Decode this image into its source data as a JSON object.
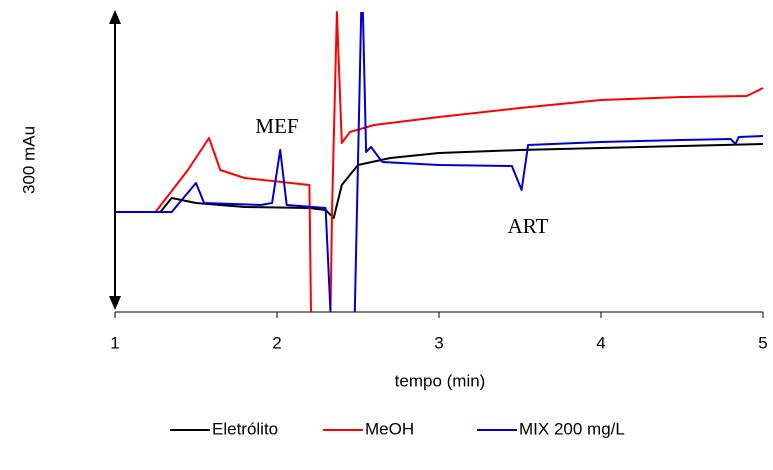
{
  "chart_data": {
    "type": "line",
    "y_label": "300 mAu",
    "x_label": "tempo (min)",
    "xlim": [
      1,
      5
    ],
    "xticks": [
      1,
      2,
      3,
      4,
      5
    ],
    "ylim": [
      0,
      300
    ],
    "annotations": [
      "MEF",
      "ART"
    ],
    "series": [
      {
        "name": "Eletrólito",
        "color": "#000000",
        "x": [
          1,
          1.28,
          1.35,
          1.5,
          1.8,
          2.2,
          2.3,
          2.35,
          2.4,
          2.5,
          2.7,
          3.0,
          3.5,
          4.0,
          4.5,
          5
        ],
        "values": [
          100,
          100,
          114,
          109,
          105,
          104,
          102,
          94,
          127,
          147,
          154,
          159,
          162,
          164,
          166,
          168
        ]
      },
      {
        "name": "MeOH",
        "color": "#ff0000",
        "x": [
          1,
          1.25,
          1.45,
          1.58,
          1.65,
          1.8,
          2.2,
          2.21,
          2.27,
          2.33,
          2.34,
          2.37,
          2.4,
          2.45,
          2.6,
          3.0,
          3.5,
          4.0,
          4.5,
          4.9,
          5
        ],
        "values": [
          100,
          100,
          142,
          174,
          142,
          134,
          127,
          0,
          null,
          0,
          105,
          300,
          169,
          180,
          187,
          195,
          204,
          212,
          215,
          216,
          224
        ]
      },
      {
        "name": "MIX 200 mg/L",
        "color": "#0000cc",
        "x": [
          1,
          1.35,
          1.5,
          1.55,
          1.9,
          1.97,
          2.02,
          2.06,
          2.3,
          2.33,
          2.4,
          2.48,
          2.52,
          2.525,
          2.53,
          2.55,
          2.58,
          2.65,
          3.0,
          3.45,
          3.51,
          3.55,
          4.0,
          4.5,
          4.8,
          4.83,
          4.85,
          5
        ],
        "values": [
          100,
          100,
          129,
          109,
          107,
          109,
          162,
          107,
          104,
          0,
          null,
          0,
          300,
          null,
          300,
          160,
          165,
          150,
          147,
          146,
          122,
          167,
          170,
          172,
          173,
          168,
          175,
          176
        ]
      }
    ]
  }
}
